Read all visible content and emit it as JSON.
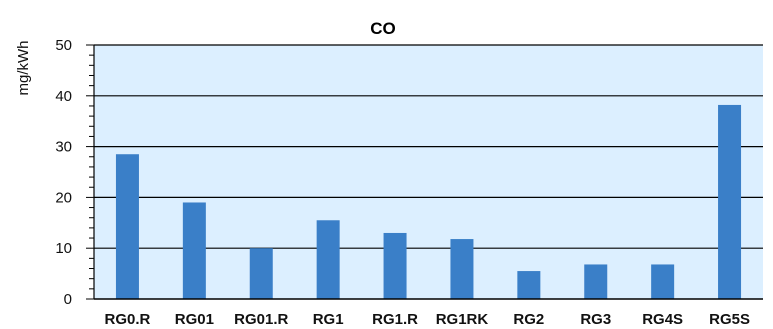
{
  "chart_data": {
    "type": "bar",
    "title": "CO",
    "xlabel": "",
    "ylabel": "mg/kWh",
    "categories": [
      "RG0.R",
      "RG01",
      "RG01.R",
      "RG1",
      "RG1.R",
      "RG1RK",
      "RG2",
      "RG3",
      "RG4S",
      "RG5S"
    ],
    "values": [
      28.5,
      19,
      10,
      15.5,
      13,
      11.8,
      5.5,
      6.8,
      6.8,
      38.2
    ],
    "ylim": [
      0,
      50
    ],
    "yticks": [
      0,
      10,
      20,
      30,
      40,
      50
    ],
    "grid": true,
    "legend": "none"
  },
  "colors": {
    "plot_background": "#dcefff",
    "bar": "#3a7fc8",
    "grid": "#000000",
    "axis": "#000000"
  }
}
